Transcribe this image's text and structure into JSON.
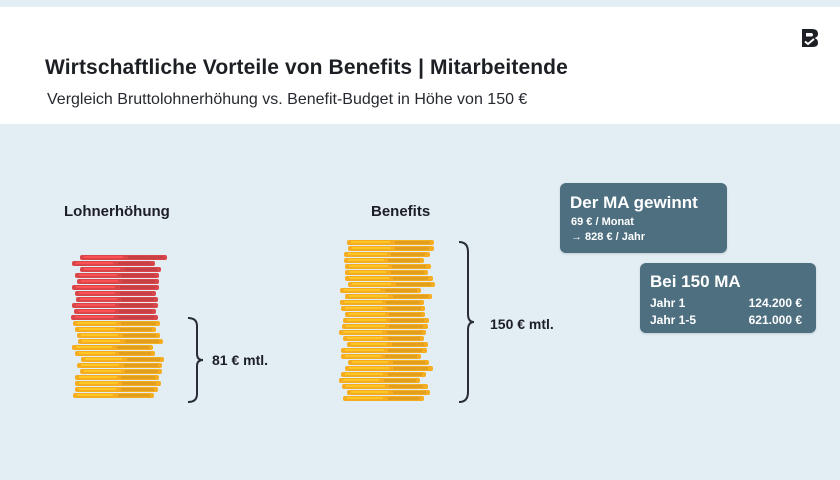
{
  "header": {
    "title": "Wirtschaftliche Vorteile von Benefits | Mitarbeitende",
    "subtitle": "Vergleich Bruttolohnerhöhung vs. Benefit-Budget in Höhe von 150 €"
  },
  "colors": {
    "background": "#e3edf4",
    "coin_orange": "#f6ac1f",
    "coin_red": "#d9464a",
    "card_bg": "#4d6f80"
  },
  "left_column": {
    "label": "Lohnerhöhung",
    "amount": "81 € mtl.",
    "net_fraction_of_stack": 0.54
  },
  "right_column": {
    "label": "Benefits",
    "amount": "150 € mtl."
  },
  "card_gain": {
    "title": "Der MA gewinnt",
    "line1": "69 € / Monat",
    "line2": "→ 828 € / Jahr"
  },
  "card_150": {
    "title": "Bei 150 MA",
    "rows": [
      {
        "label": "Jahr 1",
        "value": "124.200 €"
      },
      {
        "label": "Jahr 1-5",
        "value": "621.000 €"
      }
    ]
  }
}
